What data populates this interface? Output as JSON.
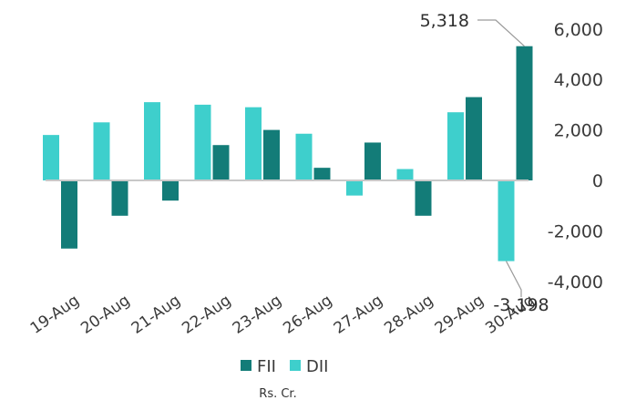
{
  "chart_data": {
    "type": "bar",
    "title": "",
    "xlabel": "",
    "ylabel": "",
    "caption": "Rs. Cr.",
    "categories": [
      "19-Aug",
      "20-Aug",
      "21-Aug",
      "22-Aug",
      "23-Aug",
      "26-Aug",
      "27-Aug",
      "28-Aug",
      "29-Aug",
      "30-Aug"
    ],
    "series": [
      {
        "name": "FII",
        "color": "#137C78",
        "values": [
          -2700,
          -1400,
          -800,
          1400,
          2000,
          500,
          1500,
          -1400,
          3300,
          5318
        ]
      },
      {
        "name": "DII",
        "color": "#3ECFCC",
        "values": [
          1800,
          2300,
          3100,
          3000,
          2900,
          1850,
          -600,
          450,
          2700,
          -3198
        ]
      }
    ],
    "data_labels": [
      {
        "series": "FII",
        "category": "30-Aug",
        "text": "5,318"
      },
      {
        "series": "DII",
        "category": "30-Aug",
        "text": "-3,198"
      }
    ],
    "yaxis": {
      "position": "right",
      "ticks": [
        6000,
        4000,
        2000,
        0,
        -2000,
        -4000
      ],
      "tick_labels": [
        "6,000",
        "4,000",
        "2,000",
        "0",
        "-2,000",
        "-4,000"
      ],
      "ylim": [
        -4000,
        6000
      ]
    },
    "grid": false,
    "legend": {
      "position": "bottom"
    }
  }
}
